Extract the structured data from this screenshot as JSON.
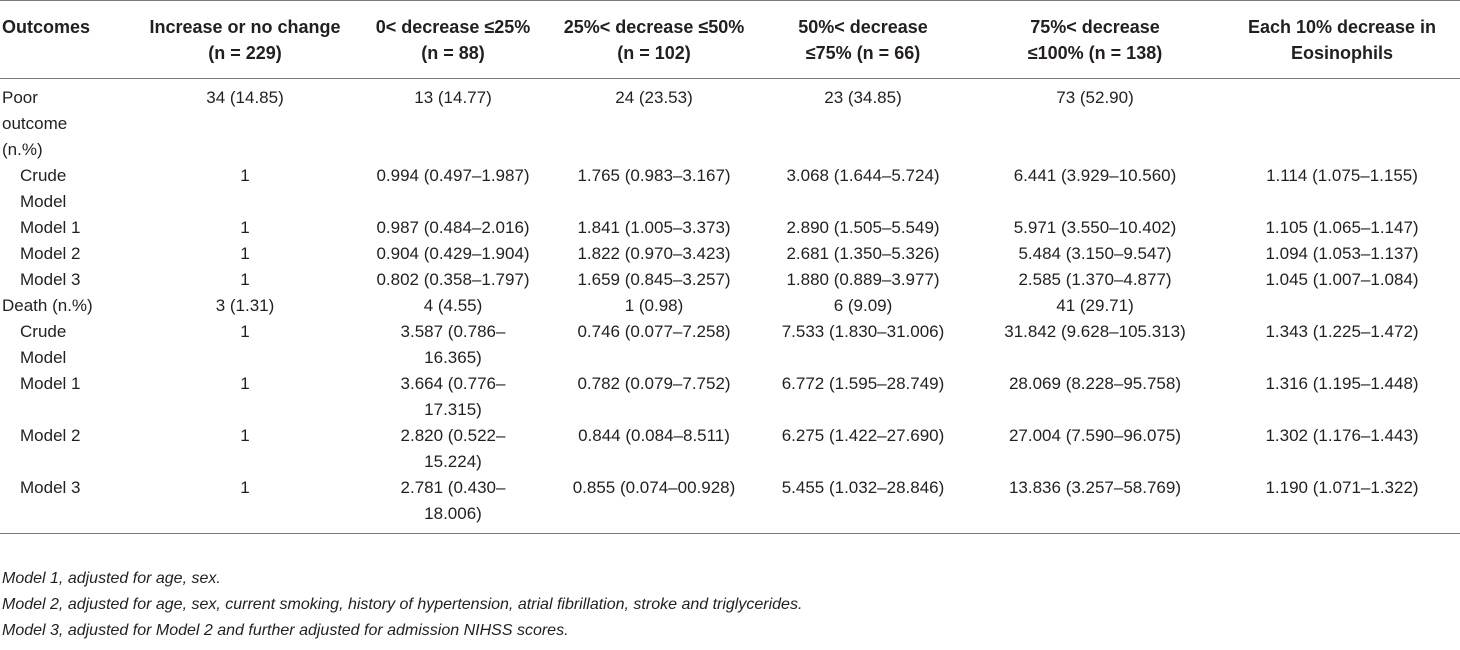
{
  "header": {
    "c0": [
      "Outcomes"
    ],
    "c1": [
      "Increase or no change",
      "(n = 229)"
    ],
    "c2": [
      "0< decrease ≤25%",
      "(n = 88)"
    ],
    "c3": [
      "25%< decrease ≤50%",
      "(n = 102)"
    ],
    "c4": [
      "50%< decrease",
      "≤75% (n = 66)"
    ],
    "c5": [
      "75%< decrease",
      "≤100% (n = 138)"
    ],
    "c6": [
      "Each 10% decrease in",
      "Eosinophils"
    ]
  },
  "rows": [
    {
      "label": [
        "Poor",
        "outcome",
        "(n.%)"
      ],
      "indent": false,
      "c1": [
        "34 (14.85)"
      ],
      "c2": [
        "13 (14.77)"
      ],
      "c3": [
        "24 (23.53)"
      ],
      "c4": [
        "23 (34.85)"
      ],
      "c5": [
        "73 (52.90)"
      ],
      "c6": [
        ""
      ]
    },
    {
      "label": [
        "Crude",
        "Model"
      ],
      "indent": true,
      "c1": [
        "1"
      ],
      "c2": [
        "0.994 (0.497–1.987)"
      ],
      "c3": [
        "1.765 (0.983–3.167)"
      ],
      "c4": [
        "3.068 (1.644–5.724)"
      ],
      "c5": [
        "6.441 (3.929–10.560)"
      ],
      "c6": [
        "1.114 (1.075–1.155)"
      ]
    },
    {
      "label": [
        "Model 1"
      ],
      "indent": true,
      "c1": [
        "1"
      ],
      "c2": [
        "0.987 (0.484–2.016)"
      ],
      "c3": [
        "1.841 (1.005–3.373)"
      ],
      "c4": [
        "2.890 (1.505–5.549)"
      ],
      "c5": [
        "5.971 (3.550–10.402)"
      ],
      "c6": [
        "1.105 (1.065–1.147)"
      ]
    },
    {
      "label": [
        "Model 2"
      ],
      "indent": true,
      "c1": [
        "1"
      ],
      "c2": [
        "0.904 (0.429–1.904)"
      ],
      "c3": [
        "1.822 (0.970–3.423)"
      ],
      "c4": [
        "2.681 (1.350–5.326)"
      ],
      "c5": [
        "5.484 (3.150–9.547)"
      ],
      "c6": [
        "1.094 (1.053–1.137)"
      ]
    },
    {
      "label": [
        "Model 3"
      ],
      "indent": true,
      "c1": [
        "1"
      ],
      "c2": [
        "0.802 (0.358–1.797)"
      ],
      "c3": [
        "1.659 (0.845–3.257)"
      ],
      "c4": [
        "1.880 (0.889–3.977)"
      ],
      "c5": [
        "2.585 (1.370–4.877)"
      ],
      "c6": [
        "1.045 (1.007–1.084)"
      ]
    },
    {
      "label": [
        "Death (n.%)"
      ],
      "indent": false,
      "c1": [
        "3 (1.31)"
      ],
      "c2": [
        "4 (4.55)"
      ],
      "c3": [
        "1 (0.98)"
      ],
      "c4": [
        "6 (9.09)"
      ],
      "c5": [
        "41 (29.71)"
      ],
      "c6": [
        ""
      ]
    },
    {
      "label": [
        "Crude",
        "Model"
      ],
      "indent": true,
      "c1": [
        "1"
      ],
      "c2": [
        "3.587 (0.786–",
        "16.365)"
      ],
      "c3": [
        "0.746 (0.077–7.258)"
      ],
      "c4": [
        "7.533 (1.830–31.006)"
      ],
      "c5": [
        "31.842 (9.628–105.313)"
      ],
      "c6": [
        "1.343 (1.225–1.472)"
      ]
    },
    {
      "label": [
        "Model 1"
      ],
      "indent": true,
      "c1": [
        "1"
      ],
      "c2": [
        "3.664 (0.776–",
        "17.315)"
      ],
      "c3": [
        "0.782 (0.079–7.752)"
      ],
      "c4": [
        "6.772 (1.595–28.749)"
      ],
      "c5": [
        "28.069 (8.228–95.758)"
      ],
      "c6": [
        "1.316 (1.195–1.448)"
      ]
    },
    {
      "label": [
        "Model 2"
      ],
      "indent": true,
      "c1": [
        "1"
      ],
      "c2": [
        "2.820 (0.522–",
        "15.224)"
      ],
      "c3": [
        "0.844 (0.084–8.511)"
      ],
      "c4": [
        "6.275 (1.422–27.690)"
      ],
      "c5": [
        "27.004 (7.590–96.075)"
      ],
      "c6": [
        "1.302 (1.176–1.443)"
      ]
    },
    {
      "label": [
        "Model 3"
      ],
      "indent": true,
      "c1": [
        "1"
      ],
      "c2": [
        "2.781 (0.430–",
        "18.006)"
      ],
      "c3": [
        "0.855 (0.074–00.928)"
      ],
      "c4": [
        "5.455 (1.032–28.846)"
      ],
      "c5": [
        "13.836 (3.257–58.769)"
      ],
      "c6": [
        "1.190 (1.071–1.322)"
      ]
    }
  ],
  "notes": [
    "Model 1, adjusted for age, sex.",
    "Model 2, adjusted for age, sex, current smoking, history of hypertension, atrial fibrillation, stroke and triglycerides.",
    "Model 3, adjusted for Model 2 and further adjusted for admission NIHSS scores."
  ]
}
